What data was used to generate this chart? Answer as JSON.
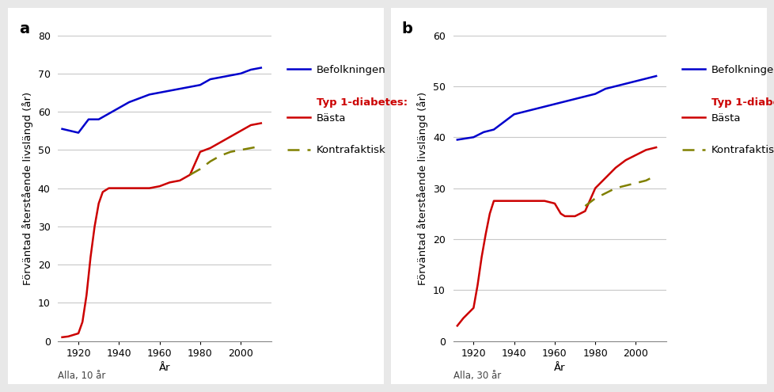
{
  "panel_a": {
    "title": "a",
    "subtitle": "Alla, 10 år",
    "ylabel": "Förväntad återstående livslängd (år)",
    "xlabel": "År",
    "ylim": [
      0,
      80
    ],
    "yticks": [
      0,
      10,
      20,
      30,
      40,
      50,
      60,
      70,
      80
    ],
    "xlim": [
      1910,
      2015
    ],
    "xticks": [
      1920,
      1940,
      1960,
      1980,
      2000
    ],
    "blue_x": [
      1912,
      1920,
      1925,
      1930,
      1935,
      1940,
      1945,
      1950,
      1955,
      1960,
      1965,
      1970,
      1975,
      1980,
      1985,
      1990,
      1995,
      2000,
      2005,
      2010
    ],
    "blue_y": [
      55.5,
      54.5,
      58.0,
      58.0,
      59.5,
      61.0,
      62.5,
      63.5,
      64.5,
      65.0,
      65.5,
      66.0,
      66.5,
      67.0,
      68.5,
      69.0,
      69.5,
      70.0,
      71.0,
      71.5
    ],
    "red_x": [
      1912,
      1915,
      1920,
      1922,
      1924,
      1926,
      1928,
      1930,
      1932,
      1935,
      1940,
      1945,
      1950,
      1955,
      1960,
      1965,
      1970,
      1975,
      1980,
      1985,
      1990,
      1995,
      2000,
      2005,
      2010
    ],
    "red_y": [
      1.0,
      1.2,
      2.0,
      5.0,
      12.0,
      22.0,
      30.0,
      36.0,
      39.0,
      40.0,
      40.0,
      40.0,
      40.0,
      40.0,
      40.5,
      41.5,
      42.0,
      43.5,
      49.5,
      50.5,
      52.0,
      53.5,
      55.0,
      56.5,
      57.0
    ],
    "dashed_x": [
      1975,
      1980,
      1985,
      1990,
      1995,
      2000,
      2005,
      2010
    ],
    "dashed_y": [
      43.5,
      45.0,
      47.0,
      48.5,
      49.5,
      50.0,
      50.5,
      51.0
    ]
  },
  "panel_b": {
    "title": "b",
    "subtitle": "Alla, 30 år",
    "ylabel": "Förväntad återstående livslängd (år)",
    "xlabel": "År",
    "ylim": [
      0,
      60
    ],
    "yticks": [
      0,
      10,
      20,
      30,
      40,
      50,
      60
    ],
    "xlim": [
      1910,
      2015
    ],
    "xticks": [
      1920,
      1940,
      1960,
      1980,
      2000
    ],
    "blue_x": [
      1912,
      1920,
      1925,
      1930,
      1935,
      1940,
      1945,
      1950,
      1955,
      1960,
      1965,
      1970,
      1975,
      1980,
      1985,
      1990,
      1995,
      2000,
      2005,
      2010
    ],
    "blue_y": [
      39.5,
      40.0,
      41.0,
      41.5,
      43.0,
      44.5,
      45.0,
      45.5,
      46.0,
      46.5,
      47.0,
      47.5,
      48.0,
      48.5,
      49.5,
      50.0,
      50.5,
      51.0,
      51.5,
      52.0
    ],
    "red_x": [
      1912,
      1915,
      1920,
      1922,
      1924,
      1926,
      1928,
      1930,
      1932,
      1935,
      1940,
      1945,
      1950,
      1955,
      1960,
      1963,
      1965,
      1970,
      1975,
      1980,
      1985,
      1990,
      1995,
      2000,
      2005,
      2010
    ],
    "red_y": [
      3.0,
      4.5,
      6.5,
      11.0,
      16.5,
      21.0,
      25.0,
      27.5,
      27.5,
      27.5,
      27.5,
      27.5,
      27.5,
      27.5,
      27.0,
      25.0,
      24.5,
      24.5,
      25.5,
      30.0,
      32.0,
      34.0,
      35.5,
      36.5,
      37.5,
      38.0
    ],
    "dashed_x": [
      1975,
      1980,
      1985,
      1990,
      1995,
      2000,
      2005,
      2010
    ],
    "dashed_y": [
      26.5,
      28.0,
      29.0,
      30.0,
      30.5,
      31.0,
      31.5,
      32.5
    ]
  },
  "blue_color": "#0000cc",
  "red_color": "#cc0000",
  "dashed_color": "#808000",
  "bg_color": "#e8e8e8",
  "plot_bg": "#ffffff",
  "grid_color": "#c8c8c8",
  "legend_labels": [
    "Befolkningen",
    "Typ 1-diabetes:",
    "Bästa",
    "Kontrafaktisk"
  ],
  "label_fontsize": 9.5,
  "tick_fontsize": 9,
  "title_fontsize": 14
}
